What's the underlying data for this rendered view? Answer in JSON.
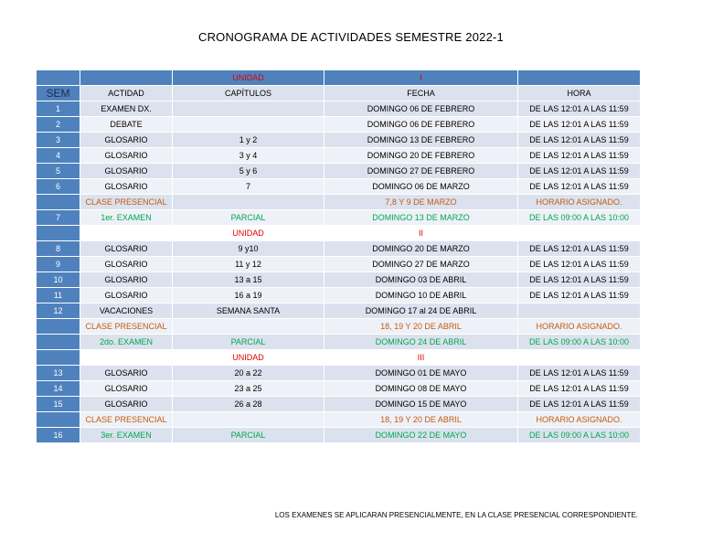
{
  "title": "CRONOGRAMA DE ACTIVIDADES  SEMESTRE 2022-1",
  "unidad_label": "UNIDAD",
  "units": [
    "I",
    "II",
    "III"
  ],
  "headers": {
    "sem": "SEM",
    "actividad": "ACTIDAD",
    "capitulos": "CAPÍTULOS",
    "fecha": "FECHA",
    "hora": "HORA"
  },
  "rows": [
    {
      "sem": "1",
      "act": "EXAMEN DX.",
      "cap": "",
      "fecha": "DOMINGO 06 DE FEBRERO",
      "hora": "DE LAS 12:01 A LAS 11:59"
    },
    {
      "sem": "2",
      "act": "DEBATE",
      "cap": "",
      "fecha": "DOMINGO 06 DE FEBRERO",
      "hora": "DE LAS 12:01 A LAS 11:59"
    },
    {
      "sem": "3",
      "act": "GLOSARIO",
      "cap": "1 y 2",
      "fecha": "DOMINGO 13 DE FEBRERO",
      "hora": "DE LAS 12:01 A LAS 11:59"
    },
    {
      "sem": "4",
      "act": "GLOSARIO",
      "cap": "3 y 4",
      "fecha": "DOMINGO 20 DE FEBRERO",
      "hora": "DE LAS 12:01 A LAS 11:59"
    },
    {
      "sem": "5",
      "act": "GLOSARIO",
      "cap": "5 y 6",
      "fecha": "DOMINGO 27 DE FEBRERO",
      "hora": "DE LAS 12:01 A LAS 11:59"
    },
    {
      "sem": "6",
      "act": "GLOSARIO",
      "cap": "7",
      "fecha": "DOMINGO 06 DE MARZO",
      "hora": "DE LAS 12:01 A LAS 11:59"
    },
    {
      "sem": "",
      "act": "CLASE PRESENCIAL",
      "cap": "",
      "fecha": "7,8 Y 9 DE MARZO",
      "hora": "HORARIO ASIGNADO."
    },
    {
      "sem": "7",
      "act": "1er.  EXAMEN",
      "cap": "PARCIAL",
      "fecha": "DOMINGO 13 DE MARZO",
      "hora": "DE LAS 09:00 A LAS 10:00"
    },
    {
      "sem": "8",
      "act": "GLOSARIO",
      "cap": "9 y10",
      "fecha": "DOMINGO 20 DE MARZO",
      "hora": "DE LAS 12:01 A LAS 11:59"
    },
    {
      "sem": "9",
      "act": "GLOSARIO",
      "cap": "11 y 12",
      "fecha": "DOMINGO 27 DE MARZO",
      "hora": "DE LAS 12:01 A LAS 11:59"
    },
    {
      "sem": "10",
      "act": "GLOSARIO",
      "cap": "13 a 15",
      "fecha": "DOMINGO 03 DE ABRIL",
      "hora": "DE LAS 12:01 A LAS 11:59"
    },
    {
      "sem": "11",
      "act": "GLOSARIO",
      "cap": "16 a 19",
      "fecha": "DOMINGO 10 DE ABRIL",
      "hora": "DE LAS 12:01 A LAS 11:59"
    },
    {
      "sem": "12",
      "act": "VACACIONES",
      "cap": "SEMANA SANTA",
      "fecha": "DOMINGO 17 al 24 DE ABRIL",
      "hora": ""
    },
    {
      "sem": "",
      "act": "CLASE PRESENCIAL",
      "cap": "",
      "fecha": "18, 19  Y 20 DE ABRIL",
      "hora": "HORARIO ASIGNADO."
    },
    {
      "sem": "",
      "act": "2do.  EXAMEN",
      "cap": "PARCIAL",
      "fecha": "DOMINGO 24 DE ABRIL",
      "hora": "DE LAS 09:00 A LAS 10:00"
    },
    {
      "sem": "13",
      "act": "GLOSARIO",
      "cap": "20 a 22",
      "fecha": "DOMINGO 01 DE MAYO",
      "hora": "DE LAS 12:01 A LAS 11:59"
    },
    {
      "sem": "14",
      "act": "GLOSARIO",
      "cap": "23 a 25",
      "fecha": "DOMINGO 08 DE MAYO",
      "hora": "DE LAS 12:01 A LAS 11:59"
    },
    {
      "sem": "15",
      "act": "GLOSARIO",
      "cap": "26 a 28",
      "fecha": "DOMINGO 15 DE MAYO",
      "hora": "DE LAS 12:01 A LAS 11:59"
    },
    {
      "sem": "",
      "act": "CLASE PRESENCIAL",
      "cap": "",
      "fecha": "18, 19  Y 20 DE ABRIL",
      "hora": "HORARIO ASIGNADO."
    },
    {
      "sem": "16",
      "act": "3er.  EXAMEN",
      "cap": "PARCIAL",
      "fecha": "DOMINGO 22 DE MAYO",
      "hora": "DE LAS 09:00 A LAS 10:00"
    }
  ],
  "footnote": "LOS EXAMENES SE APLICARAN PRESENCIALMENTE, EN LA CLASE PRESENCIAL CORRESPONDIENTE.",
  "colors": {
    "sem_blue": "#4f81bd",
    "row_a": "#dbe2ee",
    "row_b": "#eef1f7",
    "unit_red": "#e00000",
    "orange": "#c55a11",
    "green": "#00a650"
  }
}
